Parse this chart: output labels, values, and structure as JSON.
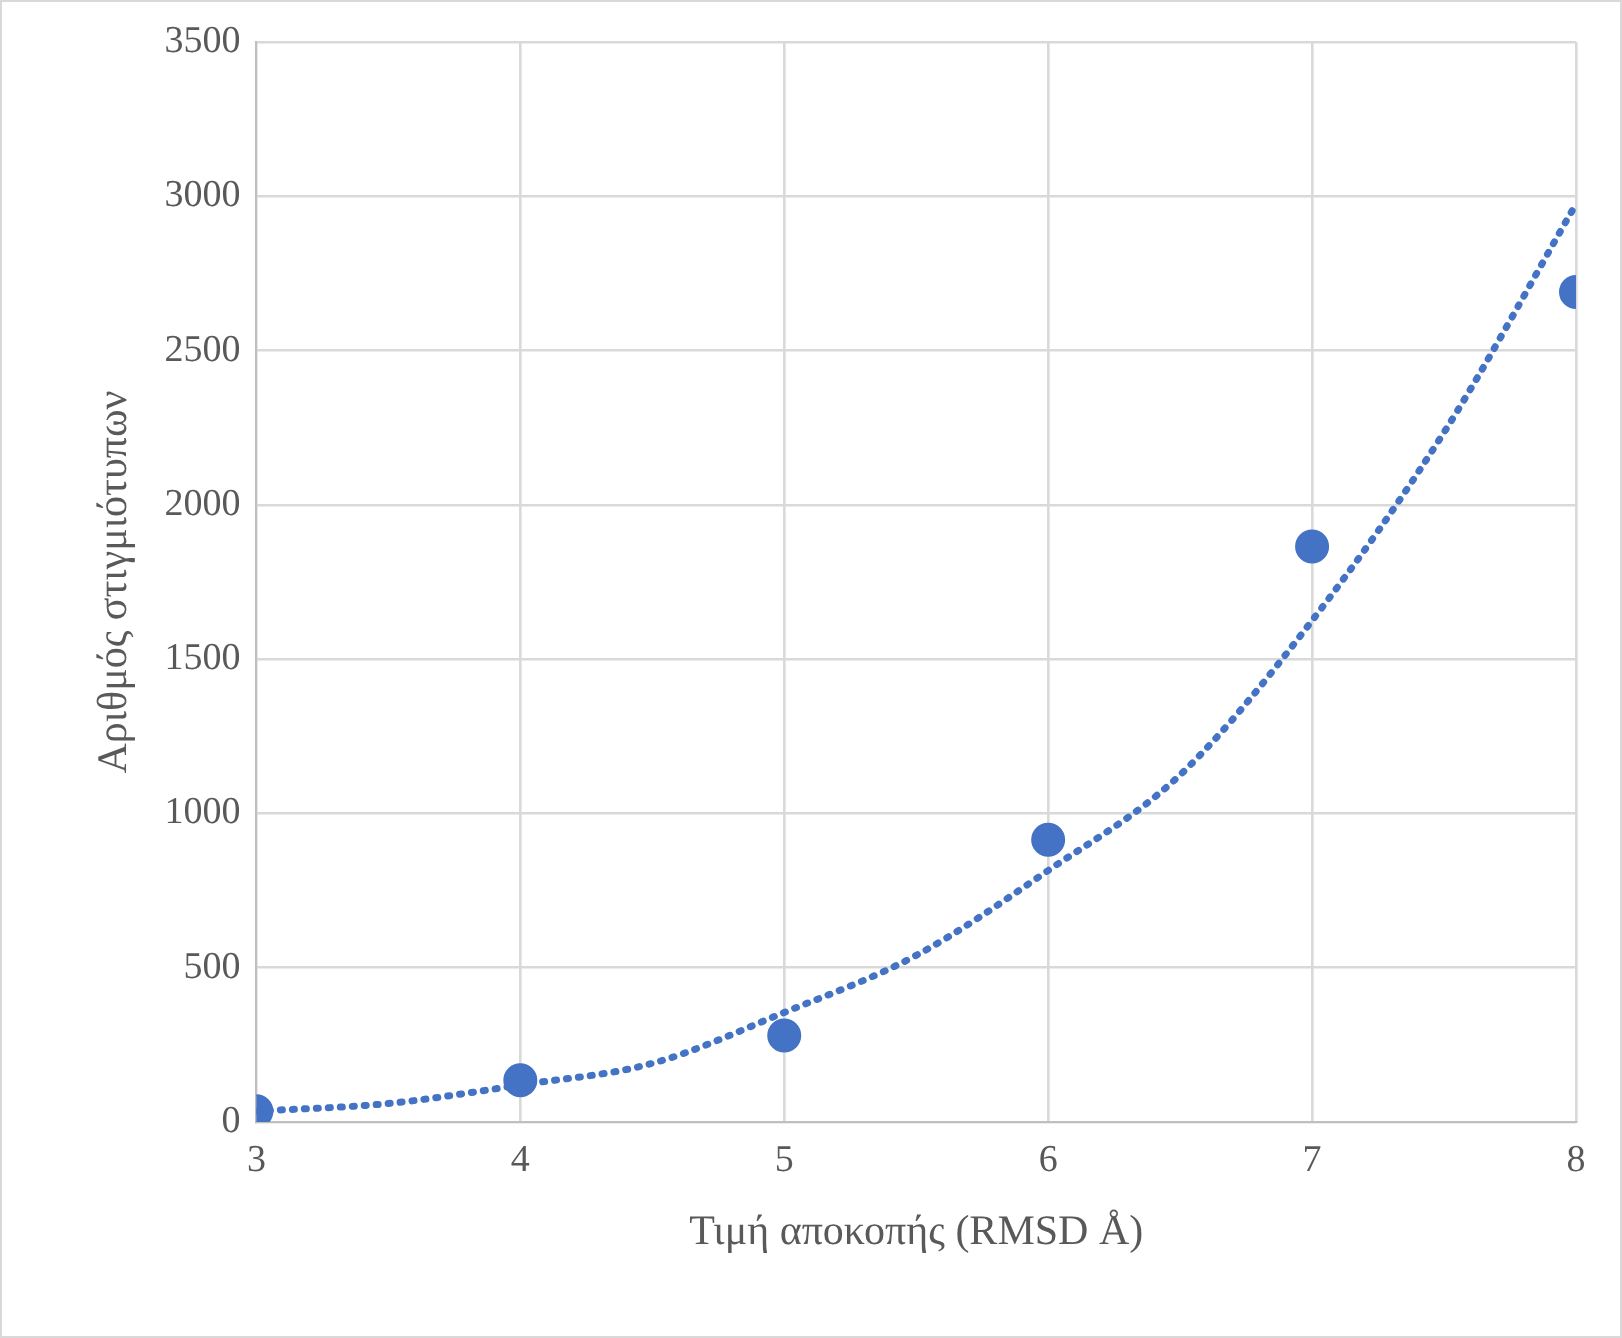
{
  "chart_data": {
    "type": "scatter",
    "xlabel": "Τιμή αποκοπής (RMSD Å)",
    "ylabel": "Αριθμός στιγμιότυπων",
    "x": [
      3,
      4,
      5,
      6,
      7,
      8
    ],
    "series": [
      {
        "color": "#4472c4",
        "marker": "circle",
        "values": [
          35,
          135,
          280,
          915,
          1865,
          2690
        ]
      },
      {
        "type": "line",
        "color": "#4472c4",
        "line_style": "dotted",
        "marker": "none",
        "x": [
          3,
          3.5,
          4,
          4.5,
          5,
          5.5,
          6,
          6.5,
          7,
          7.5,
          8
        ],
        "values": [
          35,
          60,
          120,
          190,
          355,
          540,
          815,
          1125,
          1625,
          2235,
          2975
        ]
      }
    ],
    "xlim": [
      3,
      8
    ],
    "xticks": [
      3,
      4,
      5,
      6,
      7,
      8
    ],
    "ylim": [
      0,
      3500
    ],
    "yticks": [
      0,
      500,
      1000,
      1500,
      2000,
      2500,
      3000,
      3500
    ],
    "grid": true,
    "legend": false
  }
}
